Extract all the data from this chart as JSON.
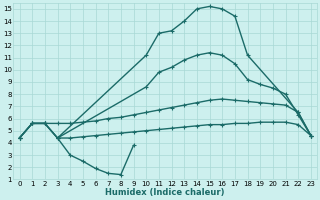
{
  "xlabel": "Humidex (Indice chaleur)",
  "bg_color": "#cdf0ee",
  "grid_color": "#a8d8d5",
  "line_color": "#1b6b68",
  "line_width": 1.0,
  "marker": "+",
  "marker_size": 3.5,
  "marker_lw": 0.8,
  "xlim": [
    -0.5,
    23.5
  ],
  "ylim": [
    1,
    15.5
  ],
  "xticks": [
    0,
    1,
    2,
    3,
    4,
    5,
    6,
    7,
    8,
    9,
    10,
    11,
    12,
    13,
    14,
    15,
    16,
    17,
    18,
    19,
    20,
    21,
    22,
    23
  ],
  "yticks": [
    1,
    2,
    3,
    4,
    5,
    6,
    7,
    8,
    9,
    10,
    11,
    12,
    13,
    14,
    15
  ],
  "xlabel_fontsize": 6.0,
  "tick_fontsize": 5.0,
  "curves": [
    {
      "x": [
        0,
        1,
        2,
        3,
        10,
        11,
        12,
        13,
        14,
        15,
        16,
        17,
        18,
        22,
        23
      ],
      "y": [
        4.4,
        5.6,
        5.6,
        4.4,
        11.2,
        13.0,
        13.2,
        14.0,
        15.0,
        15.2,
        15.0,
        14.4,
        11.2,
        6.5,
        4.6
      ]
    },
    {
      "x": [
        0,
        1,
        2,
        3,
        10,
        11,
        12,
        13,
        14,
        15,
        16,
        17,
        18,
        19,
        20,
        21,
        22,
        23
      ],
      "y": [
        4.4,
        5.6,
        5.6,
        4.4,
        8.6,
        9.8,
        10.2,
        10.8,
        11.2,
        11.4,
        11.2,
        10.5,
        9.2,
        8.8,
        8.5,
        8.0,
        6.3,
        4.6
      ]
    },
    {
      "x": [
        0,
        1,
        2,
        3,
        4,
        5,
        6,
        7,
        8,
        9,
        10,
        11,
        12,
        13,
        14,
        15,
        16,
        17,
        18,
        19,
        20,
        21,
        22,
        23
      ],
      "y": [
        4.4,
        5.6,
        5.6,
        5.6,
        5.6,
        5.7,
        5.8,
        6.0,
        6.1,
        6.3,
        6.5,
        6.7,
        6.9,
        7.1,
        7.3,
        7.5,
        7.6,
        7.5,
        7.4,
        7.3,
        7.2,
        7.1,
        6.5,
        4.6
      ]
    },
    {
      "x": [
        0,
        1,
        2,
        3,
        4,
        5,
        6,
        7,
        8,
        9,
        10,
        11,
        12,
        13,
        14,
        15,
        16,
        17,
        18,
        19,
        20,
        21,
        22,
        23
      ],
      "y": [
        4.4,
        5.6,
        5.6,
        4.4,
        4.4,
        4.5,
        4.6,
        4.7,
        4.8,
        4.9,
        5.0,
        5.1,
        5.2,
        5.3,
        5.4,
        5.5,
        5.5,
        5.6,
        5.6,
        5.7,
        5.7,
        5.7,
        5.5,
        4.6
      ]
    },
    {
      "x": [
        3,
        4,
        5,
        6,
        7,
        8,
        9
      ],
      "y": [
        4.4,
        3.0,
        2.5,
        1.9,
        1.5,
        1.4,
        3.8
      ]
    }
  ]
}
